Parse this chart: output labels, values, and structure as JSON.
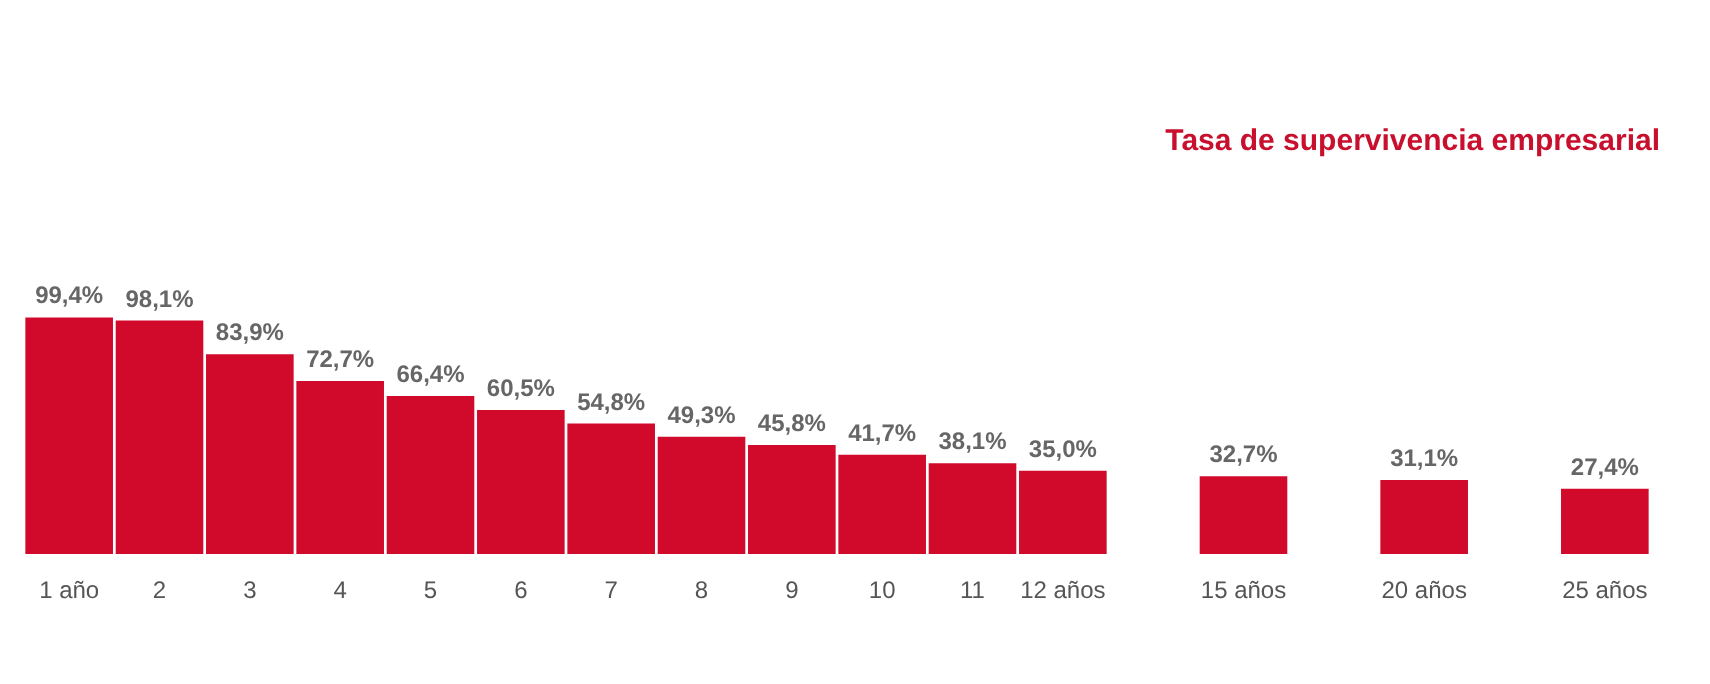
{
  "chart_data": {
    "type": "bar",
    "title": "Tasa de supervivencia empresarial",
    "categories": [
      "1 año",
      "2",
      "3",
      "4",
      "5",
      "6",
      "7",
      "8",
      "9",
      "10",
      "11",
      "12 años",
      null,
      "15 años",
      null,
      "20 años",
      null,
      "25 años"
    ],
    "values": [
      99.4,
      98.1,
      83.9,
      72.7,
      66.4,
      60.5,
      54.8,
      49.3,
      45.8,
      41.7,
      38.1,
      35.0,
      null,
      32.7,
      null,
      31.1,
      null,
      27.4
    ],
    "value_labels": [
      "99,4%",
      "98,1%",
      "83,9%",
      "72,7%",
      "66,4%",
      "60,5%",
      "54,8%",
      "49,3%",
      "45,8%",
      "41,7%",
      "38,1%",
      "35,0%",
      null,
      "32,7%",
      null,
      "31,1%",
      null,
      "27,4%"
    ],
    "color": "#d10a2c"
  }
}
